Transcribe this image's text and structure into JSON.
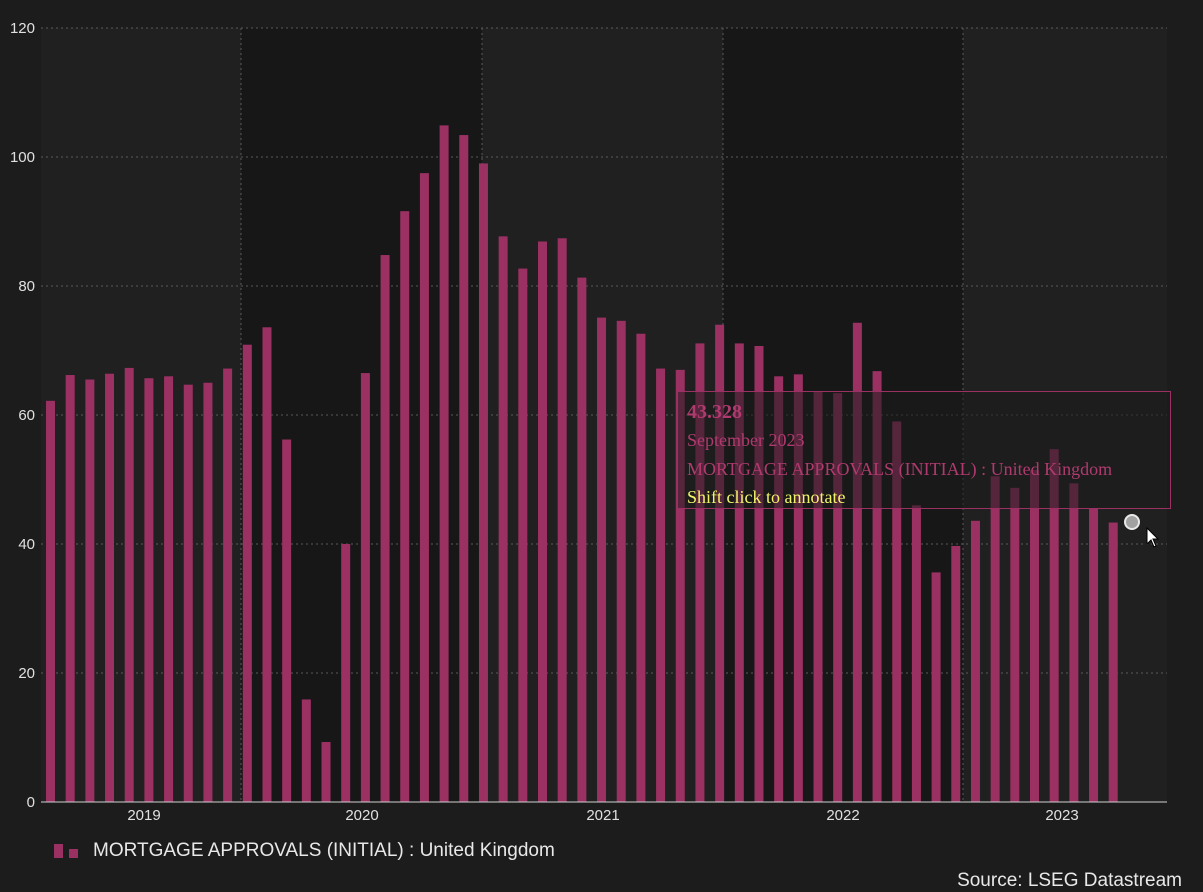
{
  "chart_data": {
    "type": "bar",
    "series": [
      {
        "name": "MORTGAGE APPROVALS (INITIAL) : United Kingdom",
        "color": "#9b3162",
        "values": [
          62.2,
          66.2,
          65.5,
          66.4,
          67.3,
          65.7,
          66.0,
          64.7,
          65.0,
          67.2,
          70.9,
          73.6,
          56.2,
          15.9,
          9.3,
          40.0,
          66.5,
          84.8,
          91.6,
          97.5,
          104.9,
          103.4,
          99.0,
          87.7,
          82.7,
          86.9,
          87.4,
          81.3,
          75.1,
          74.6,
          72.6,
          67.2,
          67.0,
          71.1,
          74.0,
          71.1,
          70.7,
          66.0,
          66.3,
          63.6,
          63.4,
          74.3,
          66.8,
          59.0,
          46.0,
          35.6,
          39.7,
          43.6,
          50.5,
          48.7,
          51.5,
          54.7,
          49.4,
          45.5,
          43.328
        ]
      }
    ],
    "x_ticks": [
      "2019",
      "2020",
      "2021",
      "2022",
      "2023"
    ],
    "y_ticks": [
      "0",
      "20",
      "40",
      "60",
      "80",
      "100",
      "120"
    ],
    "ylim": [
      0,
      120
    ],
    "grid": true,
    "legend_position": "bottom-left"
  },
  "tooltip": {
    "value": "43.328",
    "date": "September 2023",
    "series": "MORTGAGE APPROVALS (INITIAL) : United Kingdom",
    "hint": "Shift click to annotate"
  },
  "legend": {
    "label": "MORTGAGE APPROVALS (INITIAL) : United Kingdom"
  },
  "source": "Source: LSEG Datastream"
}
